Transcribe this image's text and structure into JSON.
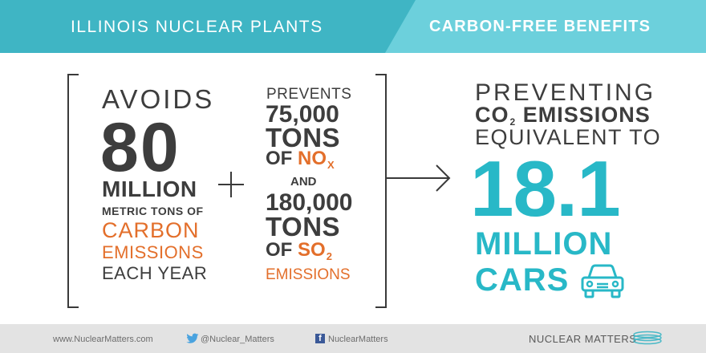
{
  "header": {
    "title": "ILLINOIS NUCLEAR PLANTS",
    "subtitle": "CARBON-FREE BENEFITS"
  },
  "carbon": {
    "verb": "AVOIDS",
    "amount": "80",
    "unit": "MILLION",
    "descriptor": "METRIC TONS OF",
    "substance_1": "CARBON",
    "substance_2": "EMISSIONS",
    "period": "EACH YEAR"
  },
  "other": {
    "verb": "PREVENTS",
    "nox_amount": "75,000",
    "nox_tons": "TONS",
    "nox_of": "OF",
    "nox_name": "NO",
    "nox_sub": "X",
    "and": "AND",
    "so2_amount": "180,000",
    "so2_tons": "TONS",
    "so2_of": "OF",
    "so2_name": "SO",
    "so2_sub": "2",
    "emissions": "EMISSIONS"
  },
  "equivalent": {
    "line1": "PREVENTING",
    "co2": "CO",
    "co2_sub": "2",
    "line2_rest": "EMISSIONS",
    "line3": "EQUIVALENT TO",
    "amount": "18.1",
    "unit": "MILLION",
    "item": "CARS",
    "icon": "car-icon"
  },
  "footer": {
    "website": "www.NuclearMatters.com",
    "twitter": "@Nuclear_Matters",
    "facebook": "NuclearMatters",
    "brand": "NUCLEAR MATTERS"
  },
  "colors": {
    "header_left": "#3fb5c4",
    "header_right": "#6cd0dc",
    "dark_text": "#3d3d3d",
    "orange": "#e36f2b",
    "teal": "#28b8c7",
    "footer_bg": "#e3e3e3"
  }
}
